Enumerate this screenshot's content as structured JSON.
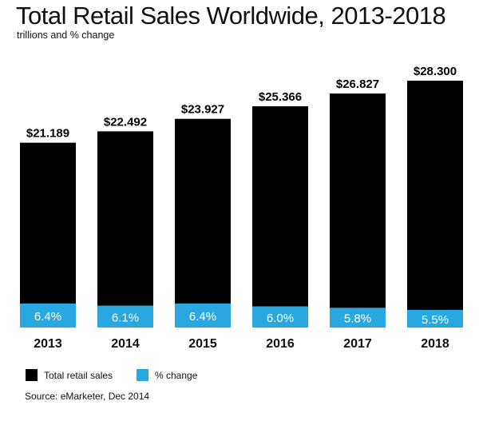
{
  "chart_data": {
    "type": "bar",
    "title": "Total Retail Sales Worldwide, 2013-2018",
    "subtitle": "trillions and % change",
    "categories": [
      "2013",
      "2014",
      "2015",
      "2016",
      "2017",
      "2018"
    ],
    "series": [
      {
        "name": "Total retail sales",
        "values": [
          21.189,
          22.492,
          23.927,
          25.366,
          26.827,
          28.3
        ],
        "labels": [
          "$21.189",
          "$22.492",
          "$23.927",
          "$25.366",
          "$26.827",
          "$28.300"
        ],
        "color": "#000000"
      },
      {
        "name": "% change",
        "values": [
          6.4,
          6.1,
          6.4,
          6.0,
          5.8,
          5.5
        ],
        "labels": [
          "6.4%",
          "6.1%",
          "6.4%",
          "6.0%",
          "5.8%",
          "5.5%"
        ],
        "color": "#29a8e0"
      }
    ],
    "ylim": [
      0,
      28.3
    ],
    "grid": false,
    "legend": "bottom-left",
    "source": "Source: eMarketer, Dec 2014"
  }
}
